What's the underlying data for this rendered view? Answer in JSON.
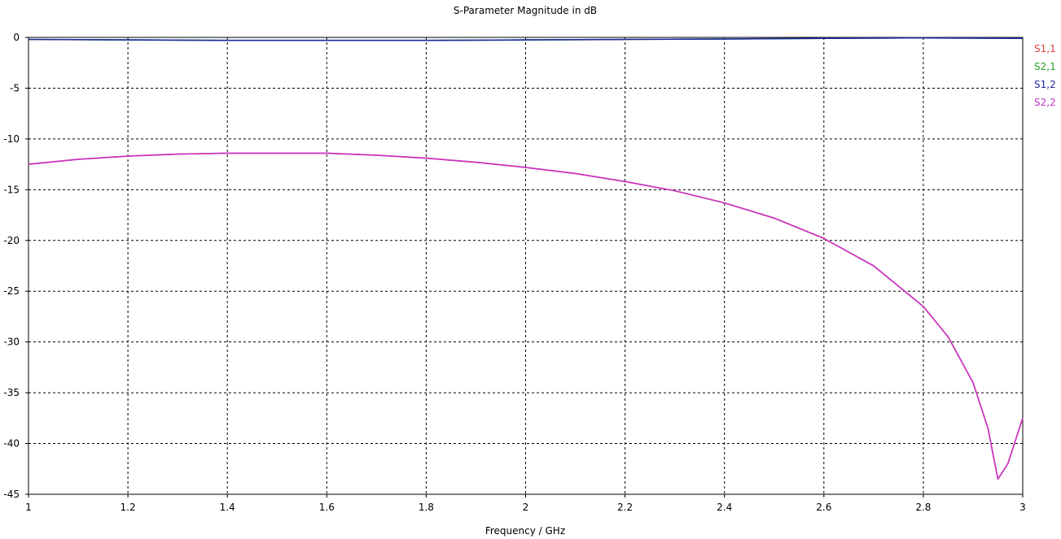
{
  "chart_data": {
    "type": "line",
    "title": "S-Parameter Magnitude in dB",
    "xlabel": "Frequency / GHz",
    "ylabel": "",
    "xlim": [
      1,
      3
    ],
    "ylim": [
      -45,
      0
    ],
    "x_ticks": [
      1,
      1.2,
      1.4,
      1.6,
      1.8,
      2,
      2.2,
      2.4,
      2.6,
      2.8,
      3
    ],
    "x_tick_labels": [
      "1",
      "1.2",
      "1.4",
      "1.6",
      "1.8",
      "2",
      "2.2",
      "2.4",
      "2.6",
      "2.8",
      "3"
    ],
    "y_ticks": [
      0,
      -5,
      -10,
      -15,
      -20,
      -25,
      -30,
      -35,
      -40,
      -45
    ],
    "y_tick_labels": [
      "0",
      "-5",
      "-10",
      "-15",
      "-20",
      "-25",
      "-30",
      "-35",
      "-40",
      "-45"
    ],
    "grid": true,
    "legend_position": "right",
    "series": [
      {
        "name": "S1,1",
        "color": "#e04040",
        "x": [
          1,
          1.1,
          1.2,
          1.3,
          1.4,
          1.5,
          1.6,
          1.7,
          1.8,
          1.9,
          2,
          2.1,
          2.2,
          2.3,
          2.4,
          2.5,
          2.6,
          2.7,
          2.8,
          2.85,
          2.9,
          2.93,
          2.95,
          2.97,
          3
        ],
        "y": [
          -12.5,
          -12.0,
          -11.7,
          -11.5,
          -11.4,
          -11.4,
          -11.4,
          -11.6,
          -11.9,
          -12.3,
          -12.8,
          -13.4,
          -14.2,
          -15.1,
          -16.3,
          -17.8,
          -19.8,
          -22.5,
          -26.5,
          -29.5,
          -34.0,
          -38.5,
          -43.5,
          -42.0,
          -37.5
        ]
      },
      {
        "name": "S2,1",
        "color": "#2ca02c",
        "x": [
          1,
          1.2,
          1.4,
          1.6,
          1.8,
          2,
          2.2,
          2.4,
          2.6,
          2.8,
          3
        ],
        "y": [
          -0.2,
          -0.25,
          -0.3,
          -0.3,
          -0.3,
          -0.25,
          -0.2,
          -0.15,
          -0.1,
          -0.05,
          -0.1
        ]
      },
      {
        "name": "S1,2",
        "color": "#1f2a9e",
        "x": [
          1,
          1.2,
          1.4,
          1.6,
          1.8,
          2,
          2.2,
          2.4,
          2.6,
          2.8,
          3
        ],
        "y": [
          -0.2,
          -0.25,
          -0.3,
          -0.3,
          -0.3,
          -0.25,
          -0.2,
          -0.15,
          -0.1,
          -0.05,
          -0.1
        ]
      },
      {
        "name": "S2,2",
        "color": "#c832c8",
        "x": [
          1,
          1.1,
          1.2,
          1.3,
          1.4,
          1.5,
          1.6,
          1.7,
          1.8,
          1.9,
          2,
          2.1,
          2.2,
          2.3,
          2.4,
          2.5,
          2.6,
          2.7,
          2.8,
          2.85,
          2.9,
          2.93,
          2.95,
          2.97,
          3
        ],
        "y": [
          -12.5,
          -12.0,
          -11.7,
          -11.5,
          -11.4,
          -11.4,
          -11.4,
          -11.6,
          -11.9,
          -12.3,
          -12.8,
          -13.4,
          -14.2,
          -15.1,
          -16.3,
          -17.8,
          -19.8,
          -22.5,
          -26.5,
          -29.5,
          -34.0,
          -38.5,
          -43.5,
          -42.0,
          -37.5
        ]
      }
    ]
  }
}
